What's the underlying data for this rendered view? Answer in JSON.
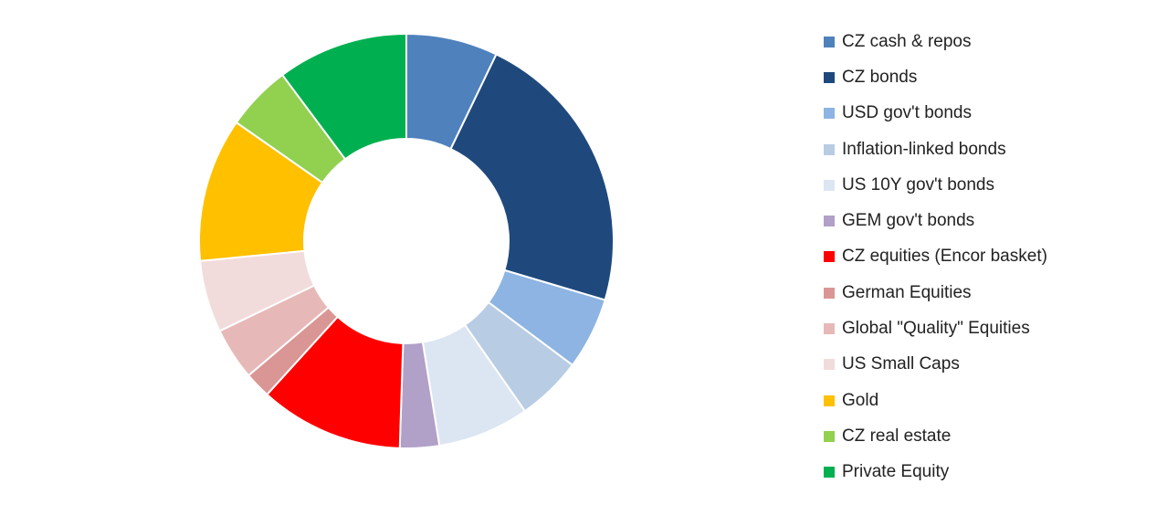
{
  "chart_data": {
    "type": "pie",
    "donut": true,
    "legend_position": "right",
    "series": [
      {
        "name": "CZ cash & repos",
        "value": 7,
        "color": "#4F81BD"
      },
      {
        "name": "CZ bonds",
        "value": 22,
        "color": "#1F497D"
      },
      {
        "name": "USD gov't bonds",
        "value": 5.5,
        "color": "#8DB4E2"
      },
      {
        "name": "Inflation-linked bonds",
        "value": 5,
        "color": "#B8CCE4"
      },
      {
        "name": "US 10Y gov't bonds",
        "value": 7,
        "color": "#DCE6F2"
      },
      {
        "name": "GEM gov't bonds",
        "value": 3,
        "color": "#B1A0C7"
      },
      {
        "name": "CZ equities (Encor basket)",
        "value": 11,
        "color": "#FF0000"
      },
      {
        "name": "German Equities",
        "value": 2,
        "color": "#DA9694"
      },
      {
        "name": "Global \"Quality\" Equities",
        "value": 4,
        "color": "#E6B9B8"
      },
      {
        "name": "US Small Caps",
        "value": 5.5,
        "color": "#F2DCDB"
      },
      {
        "name": "Gold",
        "value": 11,
        "color": "#FFC000"
      },
      {
        "name": "CZ real estate",
        "value": 5,
        "color": "#92D050"
      },
      {
        "name": "Private Equity",
        "value": 10,
        "color": "#00B050"
      }
    ]
  }
}
